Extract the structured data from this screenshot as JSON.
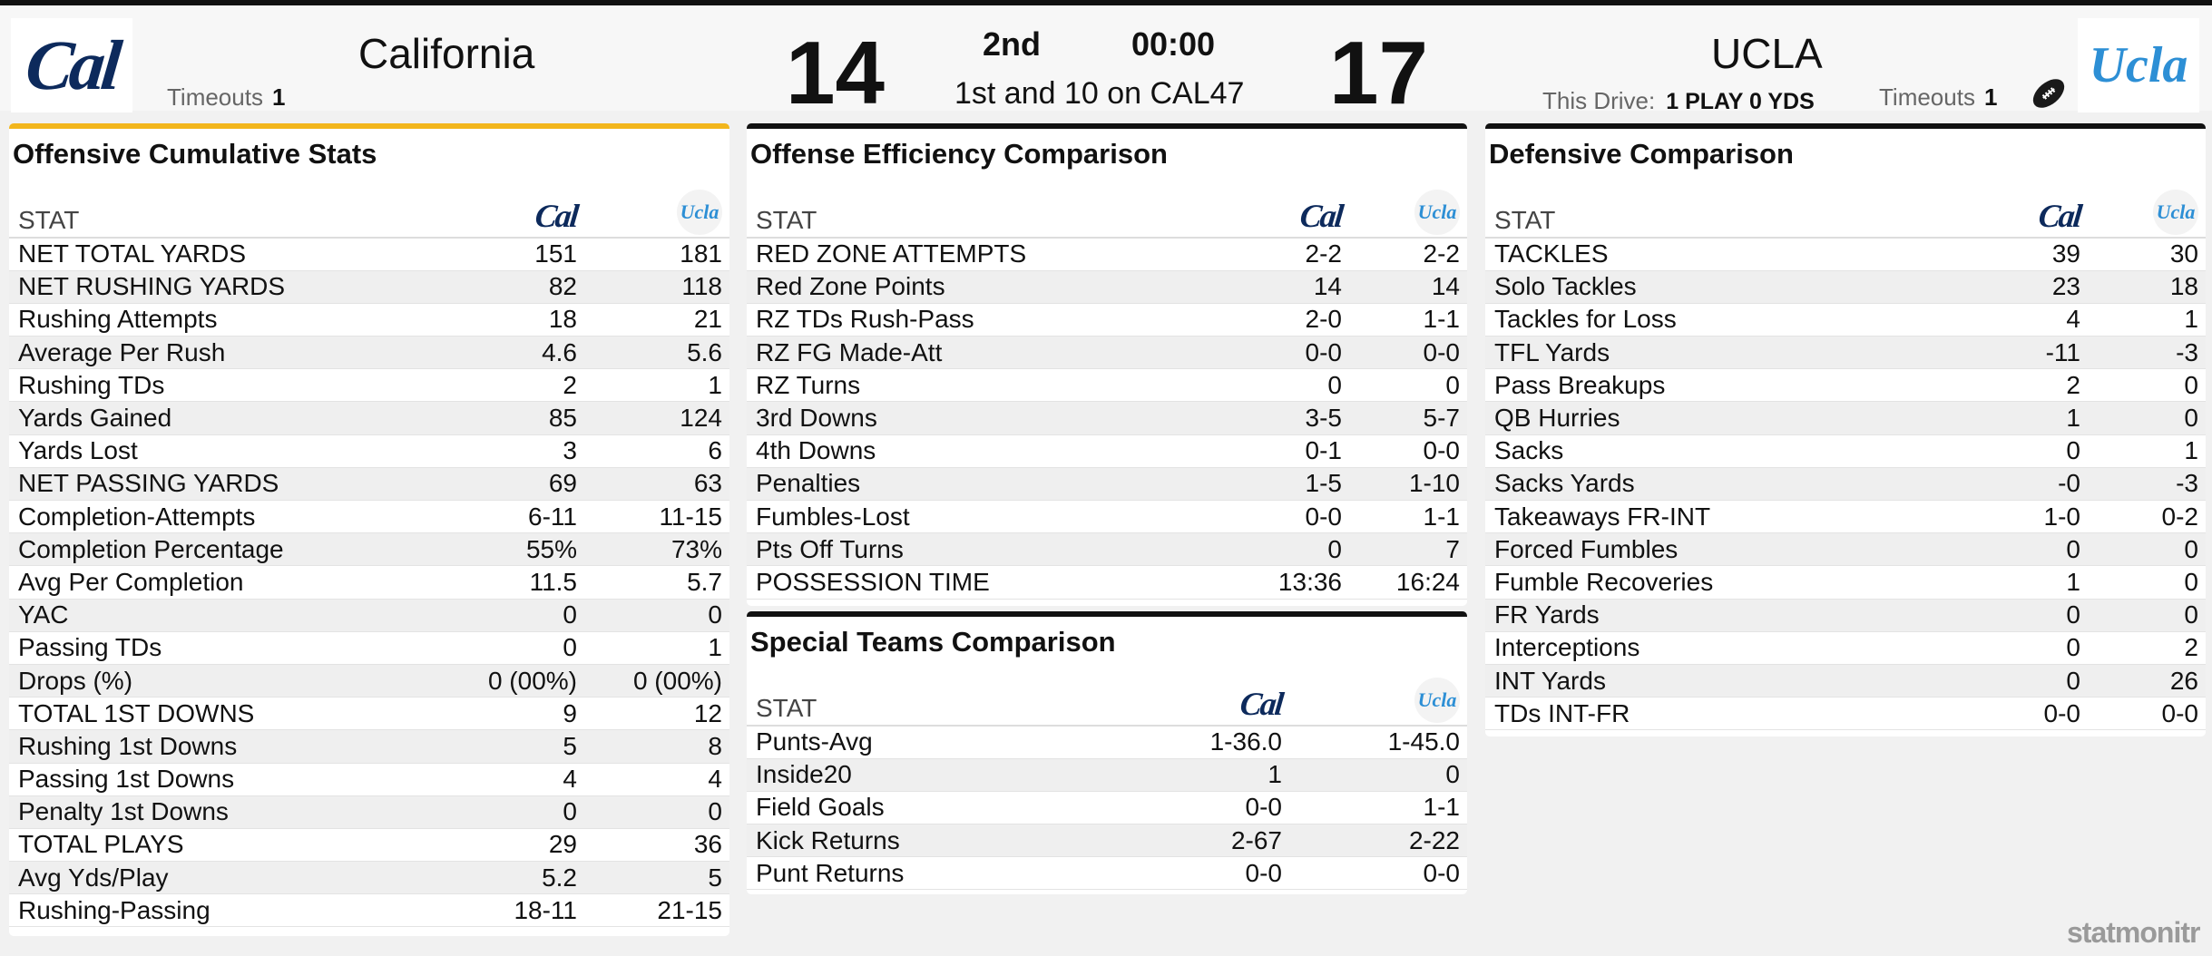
{
  "scoreboard": {
    "home": {
      "name": "California",
      "logo": "Cal",
      "score": "14",
      "timeouts_label": "Timeouts",
      "timeouts": "1"
    },
    "away": {
      "name": "UCLA",
      "logo": "Ucla",
      "score": "17",
      "timeouts_label": "Timeouts",
      "timeouts": "1"
    },
    "period": "2nd",
    "clock": "00:00",
    "down_distance": "1st and 10 on CAL47",
    "drive_label": "This Drive:",
    "drive_value": "1 PLAY 0 YDS",
    "possession_icon": "football-icon"
  },
  "logos": {
    "cal": "Cal",
    "ucla": "Ucla"
  },
  "colors": {
    "cal_navy": "#0d2a5c",
    "ucla_blue": "#2d8fd5",
    "accent_gold": "#f2b61c"
  },
  "offense": {
    "title": "Offensive Cumulative Stats",
    "stat_header": "STAT",
    "rows": [
      {
        "stat": "NET TOTAL YARDS",
        "cal": "151",
        "ucla": "181"
      },
      {
        "stat": "NET RUSHING YARDS",
        "cal": "82",
        "ucla": "118"
      },
      {
        "stat": "Rushing Attempts",
        "cal": "18",
        "ucla": "21"
      },
      {
        "stat": "Average Per Rush",
        "cal": "4.6",
        "ucla": "5.6"
      },
      {
        "stat": "Rushing TDs",
        "cal": "2",
        "ucla": "1"
      },
      {
        "stat": "Yards Gained",
        "cal": "85",
        "ucla": "124"
      },
      {
        "stat": "Yards Lost",
        "cal": "3",
        "ucla": "6"
      },
      {
        "stat": "NET PASSING YARDS",
        "cal": "69",
        "ucla": "63"
      },
      {
        "stat": "Completion-Attempts",
        "cal": "6-11",
        "ucla": "11-15"
      },
      {
        "stat": "Completion Percentage",
        "cal": "55%",
        "ucla": "73%"
      },
      {
        "stat": "Avg Per Completion",
        "cal": "11.5",
        "ucla": "5.7"
      },
      {
        "stat": "YAC",
        "cal": "0",
        "ucla": "0"
      },
      {
        "stat": "Passing TDs",
        "cal": "0",
        "ucla": "1"
      },
      {
        "stat": "Drops (%)",
        "cal": "0 (00%)",
        "ucla": "0 (00%)"
      },
      {
        "stat": "TOTAL 1ST DOWNS",
        "cal": "9",
        "ucla": "12"
      },
      {
        "stat": "Rushing 1st Downs",
        "cal": "5",
        "ucla": "8"
      },
      {
        "stat": "Passing 1st Downs",
        "cal": "4",
        "ucla": "4"
      },
      {
        "stat": "Penalty 1st Downs",
        "cal": "0",
        "ucla": "0"
      },
      {
        "stat": "TOTAL PLAYS",
        "cal": "29",
        "ucla": "36"
      },
      {
        "stat": "Avg Yds/Play",
        "cal": "5.2",
        "ucla": "5"
      },
      {
        "stat": "Rushing-Passing",
        "cal": "18-11",
        "ucla": "21-15"
      }
    ]
  },
  "efficiency": {
    "title": "Offense Efficiency Comparison",
    "stat_header": "STAT",
    "rows": [
      {
        "stat": "RED ZONE ATTEMPTS",
        "cal": "2-2",
        "ucla": "2-2"
      },
      {
        "stat": "Red Zone Points",
        "cal": "14",
        "ucla": "14"
      },
      {
        "stat": "RZ TDs Rush-Pass",
        "cal": "2-0",
        "ucla": "1-1"
      },
      {
        "stat": "RZ FG Made-Att",
        "cal": "0-0",
        "ucla": "0-0"
      },
      {
        "stat": "RZ Turns",
        "cal": "0",
        "ucla": "0"
      },
      {
        "stat": "3rd Downs",
        "cal": "3-5",
        "ucla": "5-7"
      },
      {
        "stat": "4th Downs",
        "cal": "0-1",
        "ucla": "0-0"
      },
      {
        "stat": "Penalties",
        "cal": "1-5",
        "ucla": "1-10"
      },
      {
        "stat": "Fumbles-Lost",
        "cal": "0-0",
        "ucla": "1-1"
      },
      {
        "stat": "Pts Off Turns",
        "cal": "0",
        "ucla": "7"
      },
      {
        "stat": "POSSESSION TIME",
        "cal": "13:36",
        "ucla": "16:24"
      }
    ]
  },
  "special": {
    "title": "Special Teams Comparison",
    "stat_header": "STAT",
    "rows": [
      {
        "stat": "Punts-Avg",
        "cal": "1-36.0",
        "ucla": "1-45.0"
      },
      {
        "stat": "Inside20",
        "cal": "1",
        "ucla": "0"
      },
      {
        "stat": "Field Goals",
        "cal": "0-0",
        "ucla": "1-1"
      },
      {
        "stat": "Kick Returns",
        "cal": "2-67",
        "ucla": "2-22"
      },
      {
        "stat": "Punt Returns",
        "cal": "0-0",
        "ucla": "0-0"
      }
    ]
  },
  "defense": {
    "title": "Defensive Comparison",
    "stat_header": "STAT",
    "rows": [
      {
        "stat": "TACKLES",
        "cal": "39",
        "ucla": "30"
      },
      {
        "stat": "Solo Tackles",
        "cal": "23",
        "ucla": "18"
      },
      {
        "stat": "Tackles for Loss",
        "cal": "4",
        "ucla": "1"
      },
      {
        "stat": "TFL Yards",
        "cal": "-11",
        "ucla": "-3"
      },
      {
        "stat": "Pass Breakups",
        "cal": "2",
        "ucla": "0"
      },
      {
        "stat": "QB Hurries",
        "cal": "1",
        "ucla": "0"
      },
      {
        "stat": "Sacks",
        "cal": "0",
        "ucla": "1"
      },
      {
        "stat": "Sacks Yards",
        "cal": "-0",
        "ucla": "-3"
      },
      {
        "stat": "Takeaways FR-INT",
        "cal": "1-0",
        "ucla": "0-2"
      },
      {
        "stat": "Forced Fumbles",
        "cal": "0",
        "ucla": "0"
      },
      {
        "stat": "Fumble Recoveries",
        "cal": "1",
        "ucla": "0"
      },
      {
        "stat": "FR Yards",
        "cal": "0",
        "ucla": "0"
      },
      {
        "stat": "Interceptions",
        "cal": "0",
        "ucla": "2"
      },
      {
        "stat": "INT Yards",
        "cal": "0",
        "ucla": "26"
      },
      {
        "stat": "TDs INT-FR",
        "cal": "0-0",
        "ucla": "0-0"
      }
    ]
  },
  "watermark": "statmonitr"
}
